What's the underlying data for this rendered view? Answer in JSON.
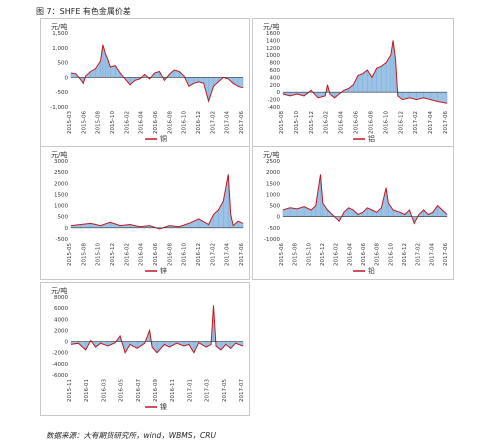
{
  "figure_title": "图 7：SHFE 有色金属价差",
  "source_note": "数据来源：大有期货研究所，wind，WBMS，CRU",
  "colors": {
    "line": "#c0171f",
    "area": "#9cc3e6",
    "zero": "#333333"
  },
  "chart_data": [
    {
      "type": "area",
      "unit": "元/吨",
      "legend": "铜",
      "ylim": [
        -1000,
        1500
      ],
      "yticks": [
        "1,500",
        "1,000",
        "500",
        "0",
        "-500",
        "-1,000"
      ],
      "xticks": [
        "2015-03",
        "2015-06",
        "2015-08",
        "2015-10",
        "2016-02",
        "2016-04",
        "2016-06",
        "2016-08",
        "2016-10",
        "2016-12",
        "2017-02",
        "2017-04",
        "2017-06"
      ],
      "points": [
        [
          0,
          150
        ],
        [
          2,
          120
        ],
        [
          4,
          -80
        ],
        [
          5,
          -200
        ],
        [
          6,
          50
        ],
        [
          8,
          200
        ],
        [
          10,
          300
        ],
        [
          12,
          550
        ],
        [
          13,
          1100
        ],
        [
          14,
          800
        ],
        [
          15,
          600
        ],
        [
          16,
          350
        ],
        [
          18,
          400
        ],
        [
          20,
          150
        ],
        [
          22,
          -50
        ],
        [
          24,
          -250
        ],
        [
          26,
          -100
        ],
        [
          28,
          -50
        ],
        [
          30,
          100
        ],
        [
          32,
          -50
        ],
        [
          34,
          150
        ],
        [
          36,
          200
        ],
        [
          38,
          -100
        ],
        [
          40,
          100
        ],
        [
          42,
          250
        ],
        [
          44,
          200
        ],
        [
          46,
          50
        ],
        [
          48,
          -300
        ],
        [
          50,
          -200
        ],
        [
          52,
          -150
        ],
        [
          54,
          -200
        ],
        [
          56,
          -800
        ],
        [
          58,
          -300
        ],
        [
          60,
          -150
        ],
        [
          62,
          0
        ],
        [
          64,
          -50
        ],
        [
          66,
          -200
        ],
        [
          68,
          -300
        ],
        [
          70,
          -350
        ]
      ]
    },
    {
      "type": "area",
      "unit": "元/吨",
      "legend": "铝",
      "ylim": [
        -400,
        1600
      ],
      "yticks": [
        "1600",
        "1400",
        "1200",
        "1000",
        "800",
        "600",
        "400",
        "200",
        "0",
        "-200",
        "-400"
      ],
      "xticks": [
        "2015-08",
        "2015-10",
        "2015-12",
        "2016-02",
        "2016-04",
        "2016-06",
        "2016-08",
        "2016-10",
        "2016-12",
        "2017-02",
        "2017-04",
        "2017-06"
      ],
      "points": [
        [
          0,
          -50
        ],
        [
          3,
          -100
        ],
        [
          6,
          -50
        ],
        [
          9,
          -100
        ],
        [
          12,
          50
        ],
        [
          15,
          -150
        ],
        [
          18,
          -100
        ],
        [
          19,
          200
        ],
        [
          20,
          -50
        ],
        [
          22,
          -150
        ],
        [
          24,
          -50
        ],
        [
          26,
          50
        ],
        [
          28,
          100
        ],
        [
          30,
          200
        ],
        [
          32,
          450
        ],
        [
          34,
          500
        ],
        [
          36,
          600
        ],
        [
          38,
          400
        ],
        [
          40,
          650
        ],
        [
          42,
          700
        ],
        [
          44,
          800
        ],
        [
          46,
          1000
        ],
        [
          47,
          1400
        ],
        [
          48,
          900
        ],
        [
          49,
          -100
        ],
        [
          51,
          -200
        ],
        [
          54,
          -150
        ],
        [
          57,
          -200
        ],
        [
          60,
          -150
        ],
        [
          63,
          -200
        ],
        [
          66,
          -250
        ],
        [
          70,
          -300
        ]
      ]
    },
    {
      "type": "area",
      "unit": "元/吨",
      "legend": "锌",
      "ylim": [
        -500,
        3000
      ],
      "yticks": [
        "3000",
        "2500",
        "2000",
        "1500",
        "1000",
        "500",
        "0",
        "-500"
      ],
      "xticks": [
        "2015-05",
        "2015-08",
        "2015-10",
        "2015-12",
        "2016-02",
        "2016-04",
        "2016-06",
        "2016-08",
        "2016-10",
        "2016-12",
        "2017-02",
        "2017-04",
        "2017-06"
      ],
      "points": [
        [
          0,
          100
        ],
        [
          4,
          150
        ],
        [
          8,
          200
        ],
        [
          12,
          100
        ],
        [
          16,
          250
        ],
        [
          20,
          100
        ],
        [
          24,
          150
        ],
        [
          28,
          50
        ],
        [
          32,
          100
        ],
        [
          36,
          -50
        ],
        [
          40,
          100
        ],
        [
          44,
          50
        ],
        [
          48,
          200
        ],
        [
          52,
          400
        ],
        [
          56,
          150
        ],
        [
          58,
          600
        ],
        [
          60,
          800
        ],
        [
          62,
          1200
        ],
        [
          64,
          2400
        ],
        [
          65,
          600
        ],
        [
          66,
          100
        ],
        [
          68,
          300
        ],
        [
          70,
          200
        ]
      ]
    },
    {
      "type": "area",
      "unit": "元/吨",
      "legend": "铅",
      "ylim": [
        -1000,
        2500
      ],
      "yticks": [
        "2500",
        "2000",
        "1500",
        "1000",
        "500",
        "0",
        "-500",
        "-1000"
      ],
      "xticks": [
        "2015-06",
        "2015-08",
        "2015-10",
        "2015-12",
        "2016-02",
        "2016-04",
        "2016-06",
        "2016-08",
        "2016-10",
        "2016-12",
        "2017-02",
        "2017-04",
        "2017-06"
      ],
      "points": [
        [
          0,
          300
        ],
        [
          3,
          400
        ],
        [
          6,
          350
        ],
        [
          9,
          450
        ],
        [
          12,
          300
        ],
        [
          14,
          500
        ],
        [
          16,
          1900
        ],
        [
          17,
          600
        ],
        [
          19,
          300
        ],
        [
          21,
          100
        ],
        [
          24,
          -200
        ],
        [
          26,
          200
        ],
        [
          28,
          400
        ],
        [
          30,
          300
        ],
        [
          32,
          100
        ],
        [
          34,
          200
        ],
        [
          36,
          400
        ],
        [
          38,
          300
        ],
        [
          40,
          200
        ],
        [
          42,
          400
        ],
        [
          44,
          1300
        ],
        [
          45,
          600
        ],
        [
          47,
          300
        ],
        [
          50,
          200
        ],
        [
          52,
          100
        ],
        [
          54,
          300
        ],
        [
          56,
          -300
        ],
        [
          58,
          100
        ],
        [
          60,
          300
        ],
        [
          62,
          100
        ],
        [
          64,
          200
        ],
        [
          66,
          500
        ],
        [
          68,
          300
        ],
        [
          70,
          100
        ]
      ]
    },
    {
      "type": "area",
      "unit": "元/吨",
      "legend": "镍",
      "ylim": [
        -6000,
        8000
      ],
      "yticks": [
        "8000",
        "6000",
        "4000",
        "2000",
        "0",
        "-2000",
        "-4000",
        "-6000"
      ],
      "xticks": [
        "2015-11",
        "2016-01",
        "2016-03",
        "2016-05",
        "2016-07",
        "2016-09",
        "2016-11",
        "2017-01",
        "2017-03",
        "2017-05",
        "2017-07"
      ],
      "points": [
        [
          0,
          -500
        ],
        [
          3,
          -300
        ],
        [
          6,
          -1500
        ],
        [
          8,
          200
        ],
        [
          10,
          -1000
        ],
        [
          12,
          -300
        ],
        [
          15,
          -800
        ],
        [
          18,
          -200
        ],
        [
          20,
          1000
        ],
        [
          22,
          -2000
        ],
        [
          24,
          -500
        ],
        [
          27,
          -1200
        ],
        [
          30,
          -300
        ],
        [
          32,
          2000
        ],
        [
          33,
          -1000
        ],
        [
          35,
          -2000
        ],
        [
          38,
          -500
        ],
        [
          40,
          -1000
        ],
        [
          43,
          -300
        ],
        [
          46,
          -800
        ],
        [
          48,
          -500
        ],
        [
          50,
          -2000
        ],
        [
          52,
          -200
        ],
        [
          55,
          -1000
        ],
        [
          57,
          -500
        ],
        [
          58,
          6500
        ],
        [
          59,
          -800
        ],
        [
          61,
          -1500
        ],
        [
          63,
          -500
        ],
        [
          65,
          -1200
        ],
        [
          67,
          -300
        ],
        [
          70,
          -800
        ]
      ]
    }
  ]
}
